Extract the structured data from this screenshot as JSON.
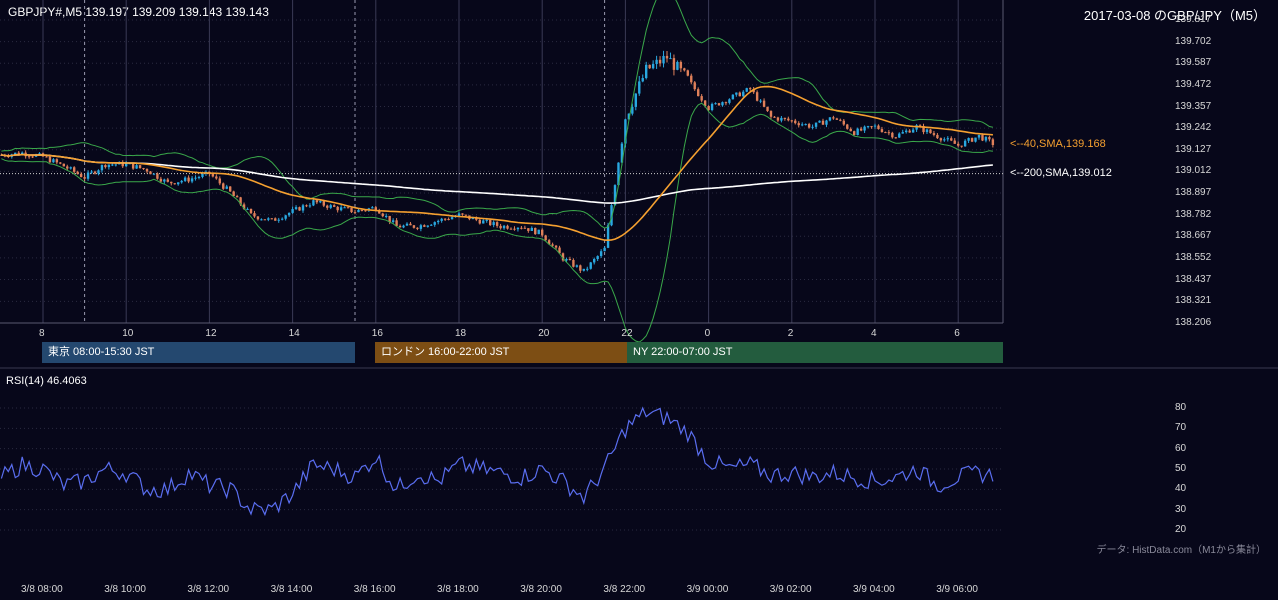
{
  "header": {
    "symbol_ohlc": "GBPJPY#,M5 139.197 139.209 139.143 139.143",
    "chart_title": "2017-03-08 のGBP/JPY（M5）"
  },
  "price_axis": {
    "ticks": [
      "139.817",
      "139.702",
      "139.587",
      "139.472",
      "139.357",
      "139.242",
      "139.127",
      "139.012",
      "138.897",
      "138.782",
      "138.667",
      "138.552",
      "138.437",
      "138.321",
      "138.206"
    ]
  },
  "time_axis_upper": [
    "8",
    "10",
    "12",
    "14",
    "16",
    "18",
    "20",
    "22",
    "0",
    "2",
    "4",
    "6"
  ],
  "sessions": [
    {
      "label": "東京 08:00-15:30 JST",
      "color": "#24486f"
    },
    {
      "label": "ロンドン 16:00-22:00 JST",
      "color": "#7d4e14"
    },
    {
      "label": "NY 22:00-07:00 JST",
      "color": "#235c3e"
    }
  ],
  "sma_labels": {
    "sma40": "<--40,SMA,139.168",
    "sma200": "<--200,SMA,139.012"
  },
  "rsi": {
    "title": "RSI(14) 46.4063",
    "ticks": [
      "80",
      "70",
      "60",
      "50",
      "40",
      "30",
      "20"
    ]
  },
  "source_note": "データ: HistData.com（M1から集計）",
  "time_axis_lower": [
    "3/8 08:00",
    "3/8 10:00",
    "3/8 12:00",
    "3/8 14:00",
    "3/8 16:00",
    "3/8 18:00",
    "3/8 20:00",
    "3/8 22:00",
    "3/9 00:00",
    "3/9 02:00",
    "3/9 04:00",
    "3/9 06:00"
  ],
  "colors": {
    "background": "#07071a",
    "bull": "#29a8e0",
    "bear": "#e0805a",
    "sma40": "#f5a030",
    "sma200": "#ffffff",
    "bollinger": "#3aa84a",
    "rsi_line": "#5a6ef0",
    "grid": "#2a2a40"
  },
  "chart_data": [
    {
      "type": "line",
      "title": "2017-03-08 のGBP/JPY（M5）",
      "subtype": "candlestick",
      "ylim": [
        138.206,
        139.817
      ],
      "x_hours": [
        7,
        7.5,
        8,
        8.5,
        9,
        9.5,
        10,
        10.5,
        11,
        11.5,
        12,
        12.5,
        13,
        13.5,
        14,
        14.5,
        15,
        15.5,
        16,
        16.5,
        17,
        17.5,
        18,
        18.5,
        19,
        19.5,
        20,
        20.5,
        21,
        21.5,
        22,
        22.5,
        23,
        23.5,
        24,
        24.5,
        25,
        25.5,
        26,
        26.5,
        27,
        27.5,
        28,
        28.5,
        29,
        29.5,
        30,
        30.5,
        31
      ],
      "close_anchors": [
        139.1,
        139.11,
        139.09,
        139.04,
        138.98,
        139.05,
        139.05,
        139.02,
        138.95,
        138.97,
        139.0,
        138.9,
        138.78,
        138.75,
        138.8,
        138.85,
        138.82,
        138.8,
        138.82,
        138.72,
        138.72,
        138.75,
        138.78,
        138.75,
        138.72,
        138.72,
        138.68,
        138.55,
        138.48,
        138.6,
        139.3,
        139.55,
        139.62,
        139.5,
        139.35,
        139.4,
        139.45,
        139.3,
        139.28,
        139.25,
        139.3,
        139.22,
        139.25,
        139.2,
        139.25,
        139.2,
        139.15,
        139.2,
        139.14
      ],
      "series": [
        {
          "name": "40,SMA",
          "last": 139.168
        },
        {
          "name": "200,SMA",
          "last": 139.012
        }
      ]
    },
    {
      "type": "line",
      "title": "RSI(14) 46.4063",
      "ylim": [
        20,
        80
      ],
      "x_hours": [
        7,
        7.5,
        8,
        8.5,
        9,
        9.5,
        10,
        10.5,
        11,
        11.5,
        12,
        12.5,
        13,
        13.5,
        14,
        14.5,
        15,
        15.5,
        16,
        16.5,
        17,
        17.5,
        18,
        18.5,
        19,
        19.5,
        20,
        20.5,
        21,
        21.5,
        22,
        22.5,
        23,
        23.5,
        24,
        24.5,
        25,
        25.5,
        26,
        26.5,
        27,
        27.5,
        28,
        28.5,
        29,
        29.5,
        30,
        30.5,
        31
      ],
      "values": [
        46,
        52,
        50,
        42,
        44,
        50,
        48,
        40,
        40,
        48,
        42,
        40,
        30,
        30,
        38,
        52,
        50,
        46,
        56,
        40,
        48,
        44,
        52,
        50,
        48,
        46,
        50,
        44,
        36,
        50,
        70,
        78,
        75,
        68,
        54,
        50,
        52,
        47,
        48,
        46,
        48,
        46,
        44,
        46,
        50,
        42,
        46,
        48,
        46
      ]
    }
  ]
}
